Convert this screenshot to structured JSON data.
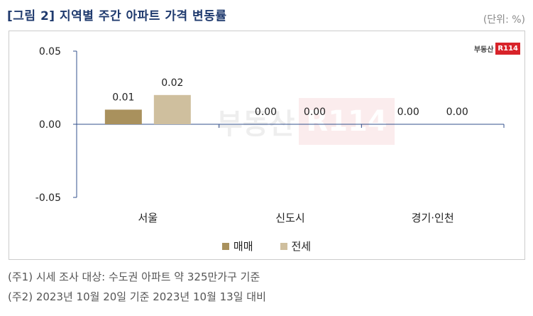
{
  "header": {
    "title": "[그림 2] 지역별 주간 아파트 가격 변동률",
    "unit": "(단위: %)"
  },
  "brand": {
    "text": "부동산",
    "box": "R114"
  },
  "chart_data": {
    "type": "bar",
    "categories": [
      "서울",
      "신도시",
      "경기·인천"
    ],
    "series": [
      {
        "name": "매매",
        "values": [
          0.01,
          0.0,
          0.0
        ],
        "labels": [
          "0.01",
          "0.00",
          "0.00"
        ],
        "color": "#a9915d"
      },
      {
        "name": "전세",
        "values": [
          0.02,
          0.0,
          0.0
        ],
        "labels": [
          "0.02",
          "0.00",
          "0.00"
        ],
        "color": "#cfbf9e"
      }
    ],
    "yticks": [
      0.05,
      0.0,
      -0.05
    ],
    "ytick_labels": [
      "0.05",
      "0.00",
      "-0.05"
    ],
    "ylim": [
      -0.05,
      0.05
    ],
    "legend_position": "bottom",
    "grid": false,
    "axis_color": "#33508c"
  },
  "notes": [
    "(주1) 시세 조사 대상: 수도권 아파트 약 325만가구 기준",
    "(주2) 2023년 10월 20일 기준 2023년 10월 13일 대비"
  ]
}
